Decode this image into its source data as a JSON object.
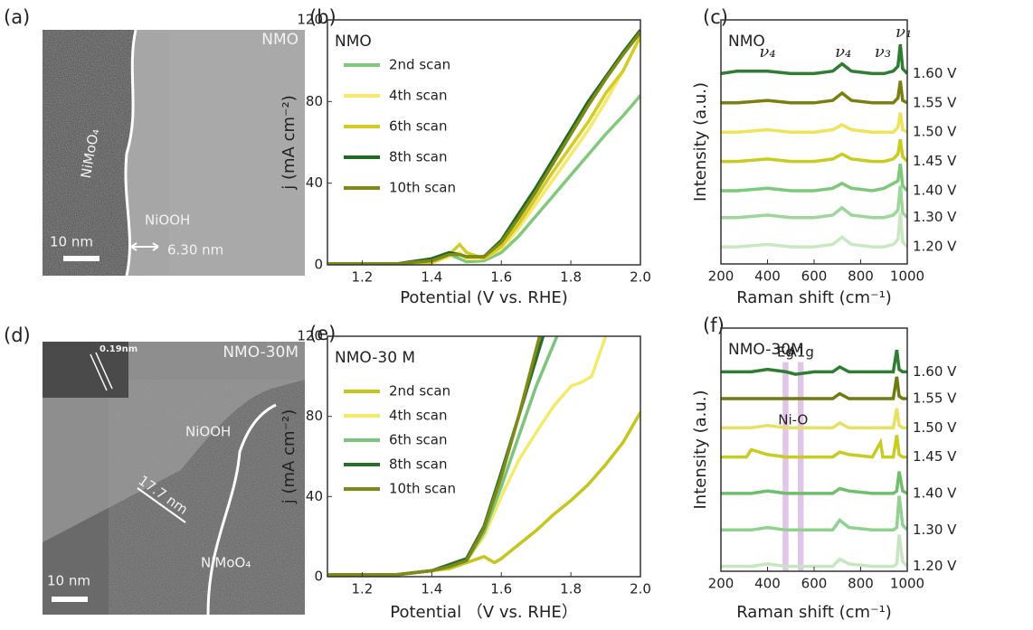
{
  "images": [
    {
      "panel_label": "(a)",
      "sample": "NMO",
      "phase_inner": "NiMoO₄",
      "phase_outer": "NiOOH",
      "scale_bar": "10 nm",
      "thickness": "6.30 nm"
    },
    {
      "panel_label": "(d)",
      "sample": "NMO-30M",
      "phase_inner": "NiMoO₄",
      "phase_outer": "NiOOH",
      "scale_bar": "10 nm",
      "thickness": "17.7 nm",
      "lattice": "0.19nm"
    }
  ],
  "chart_data": [
    {
      "type": "line",
      "panel_label": "(b)",
      "annotation": "NMO",
      "xlabel": "Potential (V vs. RHE)",
      "ylabel": "j (mA cm⁻²)",
      "xlim": [
        1.1,
        2.0
      ],
      "xticks": [
        1.2,
        1.4,
        1.6,
        1.8,
        {
          "value": 2.0,
          "label": "2.0"
        }
      ],
      "ylim": [
        0,
        120
      ],
      "yticks": [
        0,
        40,
        80,
        120
      ],
      "legend": "upper left",
      "series": [
        {
          "name": "2nd scan",
          "color": "#82c87a",
          "x": [
            1.1,
            1.3,
            1.4,
            1.45,
            1.48,
            1.5,
            1.55,
            1.6,
            1.65,
            1.7,
            1.75,
            1.8,
            1.85,
            1.9,
            1.95,
            2.0
          ],
          "values": [
            0.5,
            0.5,
            1,
            5,
            3,
            1.5,
            2,
            6,
            14,
            24,
            34,
            44,
            54,
            64,
            73,
            83
          ]
        },
        {
          "name": "4th scan",
          "color": "#f6e96b",
          "x": [
            1.1,
            1.3,
            1.4,
            1.45,
            1.48,
            1.5,
            1.55,
            1.6,
            1.65,
            1.7,
            1.75,
            1.8,
            1.85,
            1.9,
            1.95,
            2.0
          ],
          "values": [
            0.5,
            0.5,
            1,
            4,
            6,
            3,
            3,
            8,
            18,
            30,
            42,
            54,
            66,
            80,
            95,
            112
          ]
        },
        {
          "name": "6th scan",
          "color": "#d4cc24",
          "x": [
            1.1,
            1.3,
            1.4,
            1.45,
            1.48,
            1.5,
            1.55,
            1.6,
            1.65,
            1.7,
            1.75,
            1.8,
            1.85,
            1.9,
            1.95,
            2.0
          ],
          "values": [
            0.5,
            0.5,
            1,
            5,
            10,
            6,
            3,
            9,
            20,
            33,
            46,
            58,
            70,
            84,
            95,
            112
          ]
        },
        {
          "name": "8th scan",
          "color": "#1f6b22",
          "x": [
            1.1,
            1.3,
            1.4,
            1.45,
            1.48,
            1.5,
            1.55,
            1.6,
            1.65,
            1.7,
            1.75,
            1.8,
            1.85,
            1.9,
            1.95,
            2.0
          ],
          "values": [
            0.5,
            0.5,
            3,
            6,
            5,
            4,
            4,
            12,
            25,
            38,
            52,
            66,
            80,
            92,
            104,
            115
          ]
        },
        {
          "name": "10th scan",
          "color": "#7f8a16",
          "x": [
            1.1,
            1.3,
            1.4,
            1.45,
            1.48,
            1.5,
            1.55,
            1.6,
            1.65,
            1.7,
            1.75,
            1.8,
            1.85,
            1.9,
            1.95,
            2.0
          ],
          "values": [
            0.5,
            0.5,
            2,
            5,
            5,
            4,
            4,
            11,
            23,
            36,
            50,
            64,
            78,
            91,
            103,
            114
          ]
        }
      ]
    },
    {
      "type": "line",
      "panel_label": "(c)",
      "annotation": "NMO",
      "xlabel": "Raman shift (cm⁻¹)",
      "ylabel": "Intensity (a.u.)",
      "xlim": [
        200,
        1000
      ],
      "xticks": [
        200,
        400,
        600,
        800,
        1000
      ],
      "ylim": [
        0,
        100
      ],
      "legend": "right",
      "peak_labels": [
        "ν₄",
        "ν₄",
        "ν₃",
        "ν₁"
      ],
      "series": [
        {
          "name": "1.60 V",
          "color": "#2e7d32",
          "x": [
            200,
            270,
            400,
            500,
            600,
            680,
            720,
            760,
            850,
            900,
            940,
            960,
            970,
            980,
            1000
          ],
          "values": [
            78,
            79,
            79,
            78,
            78,
            79,
            82,
            79,
            78,
            78,
            79,
            81,
            90,
            80,
            78
          ]
        },
        {
          "name": "1.55 V",
          "color": "#7a7f10",
          "x": [
            200,
            270,
            400,
            500,
            600,
            680,
            720,
            760,
            850,
            900,
            940,
            960,
            970,
            980,
            1000
          ],
          "values": [
            66,
            66,
            67,
            66,
            66,
            67,
            70,
            67,
            66,
            66,
            66,
            68,
            75,
            67,
            66
          ]
        },
        {
          "name": "1.50 V",
          "color": "#efe35a",
          "x": [
            200,
            270,
            400,
            500,
            600,
            680,
            720,
            760,
            850,
            900,
            940,
            960,
            970,
            980,
            1000
          ],
          "values": [
            54,
            54,
            55,
            54,
            54,
            55,
            57,
            55,
            54,
            54,
            54,
            56,
            62,
            55,
            54
          ]
        },
        {
          "name": "1.45 V",
          "color": "#c8cc20",
          "x": [
            200,
            270,
            400,
            500,
            600,
            680,
            720,
            760,
            850,
            900,
            940,
            960,
            970,
            980,
            1000
          ],
          "values": [
            42,
            42,
            43,
            42,
            42,
            43,
            45,
            43,
            42,
            42,
            43,
            45,
            51,
            44,
            42
          ]
        },
        {
          "name": "1.40 V",
          "color": "#7dc97a",
          "x": [
            200,
            270,
            400,
            500,
            600,
            680,
            720,
            760,
            850,
            900,
            940,
            960,
            970,
            980,
            1000
          ],
          "values": [
            30,
            30,
            31,
            30,
            30,
            31,
            33,
            31,
            30,
            31,
            33,
            34,
            41,
            32,
            30
          ]
        },
        {
          "name": "1.30 V",
          "color": "#9cd69a",
          "x": [
            200,
            270,
            400,
            500,
            600,
            680,
            720,
            760,
            850,
            900,
            940,
            960,
            970,
            980,
            1000
          ],
          "values": [
            19,
            19,
            20,
            19,
            19,
            20,
            23,
            20,
            19,
            19,
            20,
            22,
            32,
            21,
            19
          ]
        },
        {
          "name": "1.20 V",
          "color": "#c9e8c2",
          "x": [
            200,
            270,
            400,
            500,
            600,
            680,
            720,
            760,
            850,
            900,
            940,
            960,
            970,
            980,
            1000
          ],
          "values": [
            7,
            7,
            8,
            7,
            7,
            8,
            11,
            8,
            7,
            7,
            8,
            10,
            21,
            9,
            7
          ]
        }
      ]
    },
    {
      "type": "line",
      "panel_label": "(e)",
      "annotation": "NMO-30 M",
      "xlabel": "Potential （V vs. RHE）",
      "ylabel": "j (mA cm⁻²)",
      "xlim": [
        1.1,
        2.0
      ],
      "xticks": [
        1.2,
        1.4,
        1.6,
        1.8,
        {
          "value": 2.0,
          "label": "2.0"
        }
      ],
      "ylim": [
        0,
        120
      ],
      "yticks": [
        0,
        40,
        80,
        120
      ],
      "legend": "upper left",
      "series": [
        {
          "name": "2nd scan",
          "color": "#c5c51c",
          "x": [
            1.1,
            1.3,
            1.4,
            1.45,
            1.5,
            1.55,
            1.58,
            1.6,
            1.65,
            1.7,
            1.75,
            1.8,
            1.85,
            1.9,
            1.95,
            2.0
          ],
          "values": [
            1,
            1,
            3,
            4,
            7,
            10,
            7,
            9,
            16,
            23,
            31,
            38,
            46,
            56,
            67,
            82
          ]
        },
        {
          "name": "4th scan",
          "color": "#f4ea6a",
          "x": [
            1.1,
            1.3,
            1.4,
            1.45,
            1.5,
            1.55,
            1.6,
            1.65,
            1.7,
            1.75,
            1.8,
            1.83,
            1.86,
            1.9
          ],
          "values": [
            1,
            1,
            3,
            5,
            8,
            20,
            40,
            58,
            72,
            85,
            95,
            97,
            100,
            120
          ]
        },
        {
          "name": "6th scan",
          "color": "#7cc47c",
          "x": [
            1.1,
            1.3,
            1.4,
            1.45,
            1.5,
            1.55,
            1.6,
            1.65,
            1.7,
            1.76
          ],
          "values": [
            1,
            1,
            3,
            5,
            8,
            22,
            45,
            70,
            95,
            120
          ]
        },
        {
          "name": "8th scan",
          "color": "#2a6e2a",
          "x": [
            1.1,
            1.3,
            1.4,
            1.45,
            1.5,
            1.55,
            1.6,
            1.65,
            1.72
          ],
          "values": [
            1,
            1,
            3,
            6,
            9,
            25,
            52,
            80,
            120
          ]
        },
        {
          "name": "10th scan",
          "color": "#7f8a16",
          "x": [
            1.1,
            1.3,
            1.4,
            1.45,
            1.5,
            1.55,
            1.6,
            1.65,
            1.71
          ],
          "values": [
            1,
            1,
            3,
            5,
            8,
            24,
            50,
            80,
            120
          ]
        }
      ]
    },
    {
      "type": "line",
      "panel_label": "(f)",
      "annotation": "NMO-30M",
      "xlabel": "Raman shift (cm⁻¹)",
      "ylabel": "Intensity (a.u.)",
      "xlim": [
        200,
        1000
      ],
      "xticks": [
        200,
        400,
        600,
        800,
        1000
      ],
      "ylim": [
        0,
        100
      ],
      "legend": "right",
      "bands": [
        {
          "label": "Eg",
          "range": [
            465,
            490
          ]
        },
        {
          "label": "A1g",
          "range": [
            530,
            555
          ]
        }
      ],
      "band_label": "Ni-O",
      "series": [
        {
          "name": "1.60 V",
          "color": "#2e7d32",
          "x": [
            200,
            310,
            330,
            400,
            480,
            520,
            600,
            680,
            710,
            750,
            850,
            885,
            895,
            940,
            955,
            965,
            980,
            1000
          ],
          "values": [
            82,
            82,
            82,
            83,
            82,
            81,
            82,
            82,
            84,
            82,
            82,
            82,
            82,
            82,
            91,
            83,
            82,
            82
          ]
        },
        {
          "name": "1.55 V",
          "color": "#6f7a10",
          "x": [
            200,
            310,
            330,
            400,
            480,
            520,
            600,
            680,
            710,
            750,
            850,
            885,
            895,
            940,
            955,
            965,
            980,
            1000
          ],
          "values": [
            71,
            71,
            71,
            71,
            71,
            71,
            71,
            71,
            73,
            71,
            71,
            71,
            71,
            71,
            80,
            72,
            71,
            71
          ]
        },
        {
          "name": "1.50 V",
          "color": "#e8e060",
          "x": [
            200,
            310,
            330,
            400,
            480,
            520,
            600,
            680,
            710,
            750,
            850,
            885,
            895,
            940,
            955,
            965,
            980,
            1000
          ],
          "values": [
            59,
            59,
            59,
            60,
            59,
            59,
            59,
            59,
            61,
            59,
            59,
            59,
            59,
            59,
            67,
            60,
            59,
            59
          ]
        },
        {
          "name": "1.45 V",
          "color": "#c8cc20",
          "x": [
            200,
            310,
            330,
            400,
            480,
            520,
            600,
            680,
            710,
            750,
            850,
            885,
            895,
            940,
            955,
            965,
            980,
            1000
          ],
          "values": [
            47,
            47,
            50,
            48,
            47,
            47,
            47,
            47,
            49,
            48,
            47,
            53,
            47,
            47,
            56,
            48,
            47,
            47
          ]
        },
        {
          "name": "1.40 V",
          "color": "#6dbf6a",
          "x": [
            200,
            310,
            330,
            400,
            480,
            520,
            600,
            680,
            710,
            750,
            850,
            885,
            895,
            940,
            955,
            965,
            980,
            1000
          ],
          "values": [
            32,
            32,
            32,
            33,
            32,
            32,
            32,
            32,
            34,
            33,
            32,
            32,
            32,
            32,
            33,
            41,
            33,
            32
          ]
        },
        {
          "name": "1.30 V",
          "color": "#8fd18f",
          "x": [
            200,
            310,
            330,
            400,
            480,
            520,
            600,
            680,
            710,
            750,
            850,
            885,
            895,
            940,
            955,
            965,
            980,
            1000
          ],
          "values": [
            17,
            17,
            17,
            18,
            17,
            17,
            17,
            17,
            21,
            18,
            17,
            17,
            17,
            17,
            18,
            31,
            19,
            17
          ]
        },
        {
          "name": "1.20 V",
          "color": "#c6e6c0",
          "x": [
            200,
            310,
            330,
            400,
            480,
            520,
            600,
            680,
            710,
            750,
            850,
            885,
            895,
            940,
            955,
            965,
            980,
            1000
          ],
          "values": [
            2,
            2,
            2,
            3,
            2,
            2,
            2,
            2,
            5,
            3,
            2,
            2,
            2,
            2,
            3,
            15,
            4,
            2
          ]
        }
      ]
    }
  ]
}
